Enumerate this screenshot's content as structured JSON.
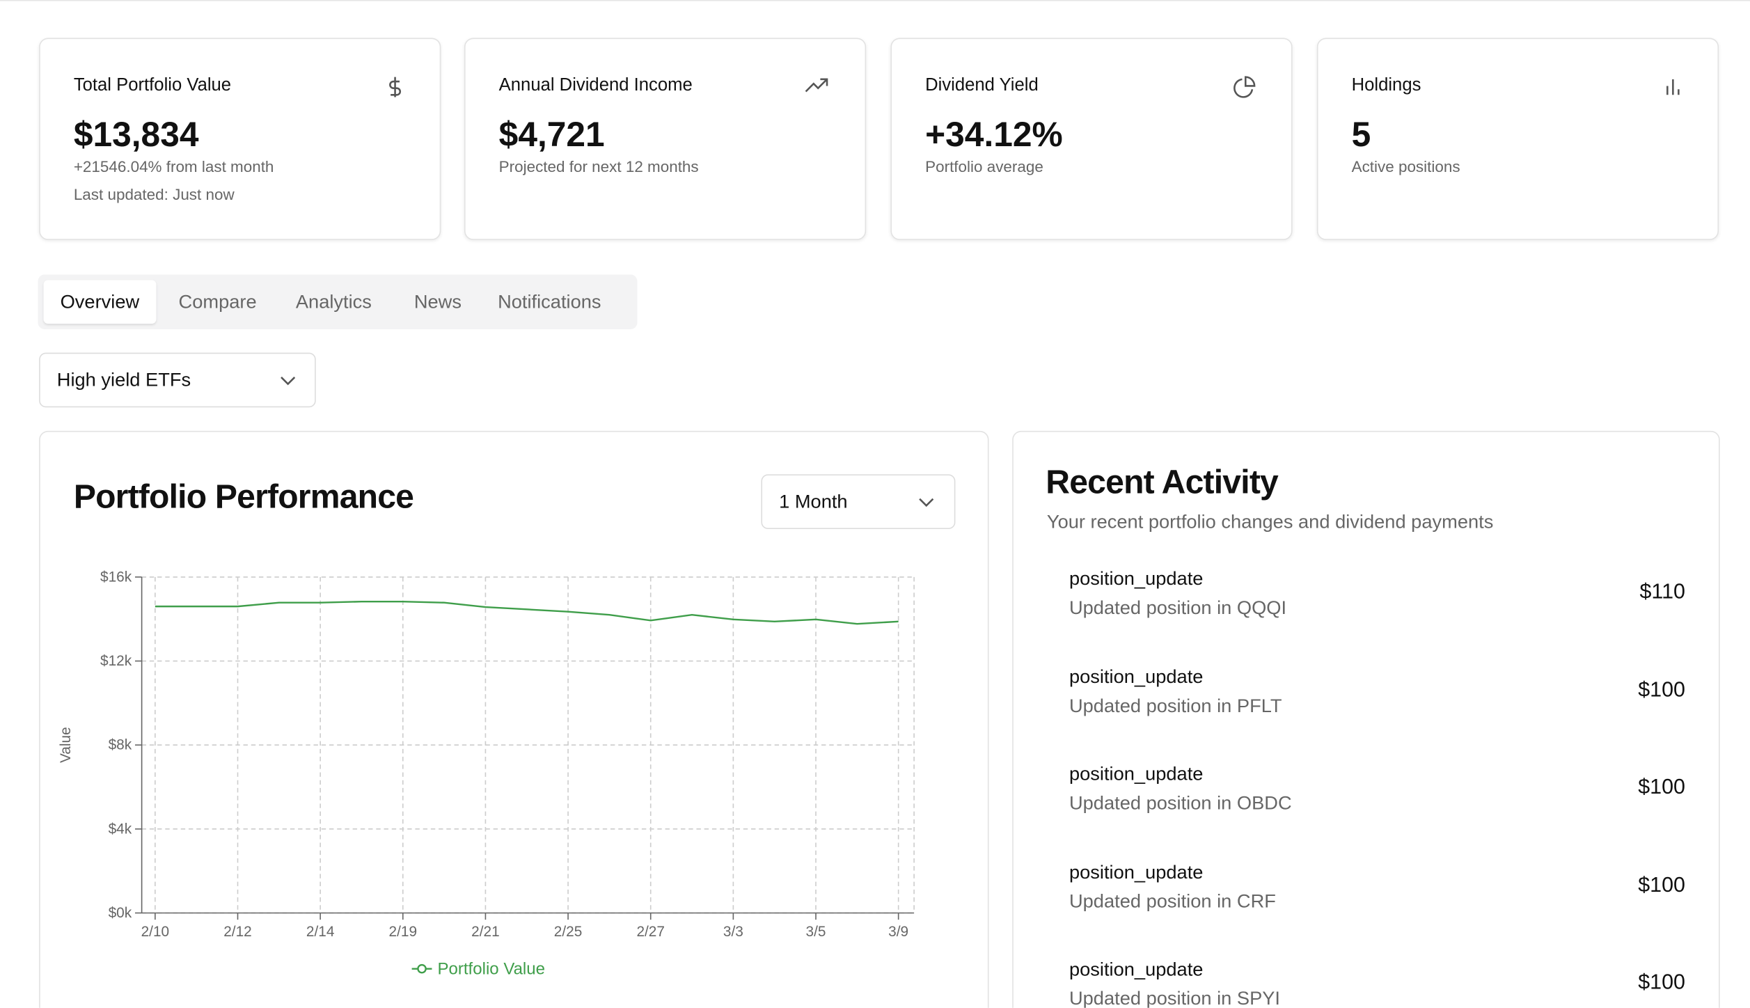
{
  "cards": [
    {
      "title": "Total Portfolio Value",
      "value": "$13,834",
      "sub": "+21546.04% from last month",
      "note": "Last updated: Just now"
    },
    {
      "title": "Annual Dividend Income",
      "value": "$4,721",
      "sub": "Projected for next 12 months"
    },
    {
      "title": "Dividend Yield",
      "value": "+34.12%",
      "sub": "Portfolio average"
    },
    {
      "title": "Holdings",
      "value": "5",
      "sub": "Active positions"
    }
  ],
  "tabs": [
    "Overview",
    "Compare",
    "Analytics",
    "News",
    "Notifications"
  ],
  "filter": "High yield ETFs",
  "performance": {
    "title": "Portfolio Performance",
    "range": "1 Month"
  },
  "chart_data": {
    "type": "line",
    "y_label": "Value",
    "categories": [
      "2/10",
      null,
      "2/12",
      null,
      "2/14",
      null,
      "2/19",
      null,
      "2/21",
      null,
      "2/25",
      null,
      "2/27",
      null,
      "3/3",
      null,
      "3/5",
      null,
      "3/9"
    ],
    "series": [
      {
        "name": "Portfolio Value",
        "color": "#3f9e4a",
        "values": [
          14600,
          14600,
          14600,
          14780,
          14780,
          14830,
          14830,
          14780,
          14570,
          14460,
          14350,
          14200,
          13930,
          14200,
          13980,
          13880,
          13980,
          13770,
          13880
        ]
      }
    ],
    "ylim": [
      0,
      16000
    ],
    "yticks": [
      {
        "value": 0,
        "label": "$0k"
      },
      {
        "value": 4000,
        "label": "$4k"
      },
      {
        "value": 8000,
        "label": "$8k"
      },
      {
        "value": 12000,
        "label": "$12k"
      },
      {
        "value": 16000,
        "label": "$16k"
      }
    ],
    "grid": true
  },
  "activity": {
    "title": "Recent Activity",
    "subtitle": "Your recent portfolio changes and dividend payments",
    "items": [
      {
        "type": "position_update",
        "description": "Updated position in QQQI",
        "amount": "$110"
      },
      {
        "type": "position_update",
        "description": "Updated position in PFLT",
        "amount": "$100"
      },
      {
        "type": "position_update",
        "description": "Updated position in OBDC",
        "amount": "$100"
      },
      {
        "type": "position_update",
        "description": "Updated position in CRF",
        "amount": "$100"
      },
      {
        "type": "position_update",
        "description": "Updated position in SPYI",
        "amount": "$100"
      }
    ]
  }
}
